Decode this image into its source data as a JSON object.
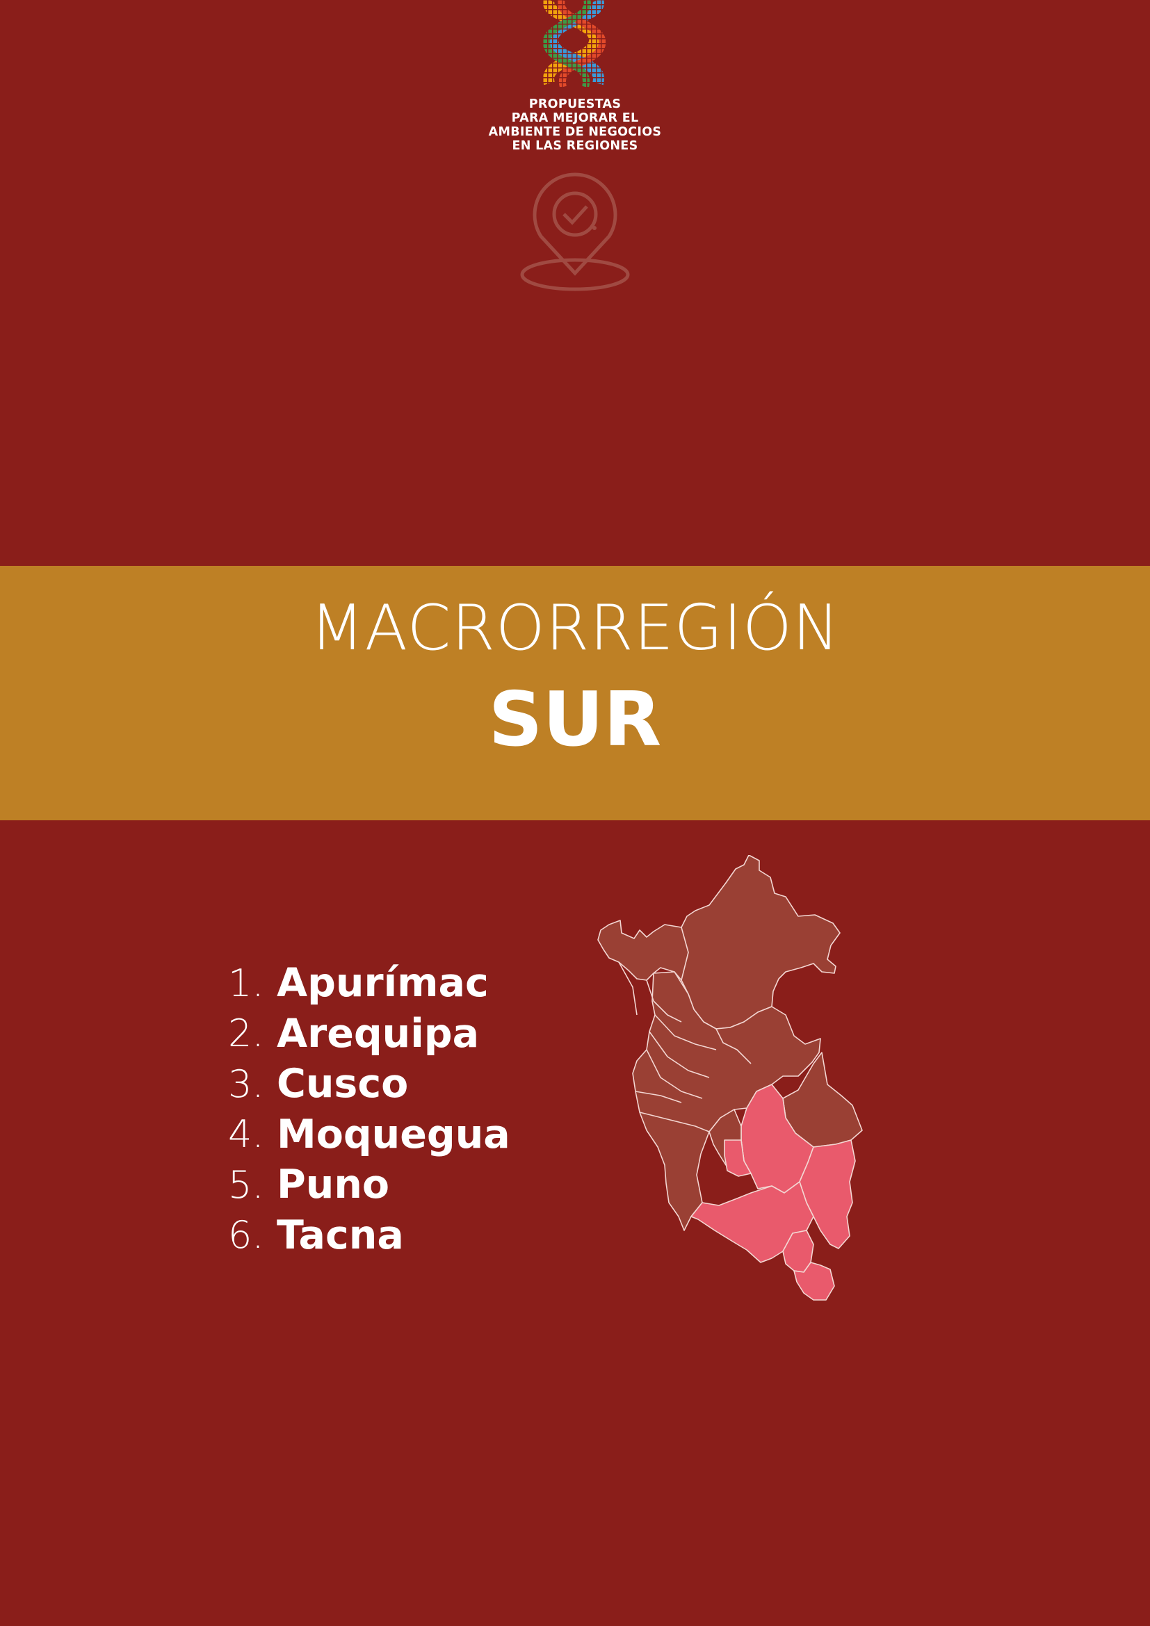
{
  "logo": {
    "lines": [
      "PROPUESTAS",
      "PARA MEJORAR EL",
      "AMBIENTE DE NEGOCIOS",
      "EN LAS REGIONES"
    ],
    "icon": "braided-mosaic-logo"
  },
  "pin": {
    "icon": "location-pin-check-icon"
  },
  "band": {
    "title": "MACRORREGIÓN",
    "subtitle": "SUR"
  },
  "regions": [
    {
      "number": "1.",
      "name": "Apurímac"
    },
    {
      "number": "2.",
      "name": "Arequipa"
    },
    {
      "number": "3.",
      "name": "Cusco"
    },
    {
      "number": "4.",
      "name": "Moquegua"
    },
    {
      "number": "5.",
      "name": "Puno"
    },
    {
      "number": "6.",
      "name": "Tacna"
    }
  ],
  "map": {
    "icon": "peru-regions-map",
    "highlighted_regions": [
      "Apurímac",
      "Arequipa",
      "Cusco",
      "Moquegua",
      "Puno",
      "Tacna"
    ]
  },
  "colors": {
    "background": "#8a1e1a",
    "band": "#be8025",
    "map_base": "#9a4034",
    "map_highlight": "#e95a6c",
    "pin": "#a04a42"
  }
}
